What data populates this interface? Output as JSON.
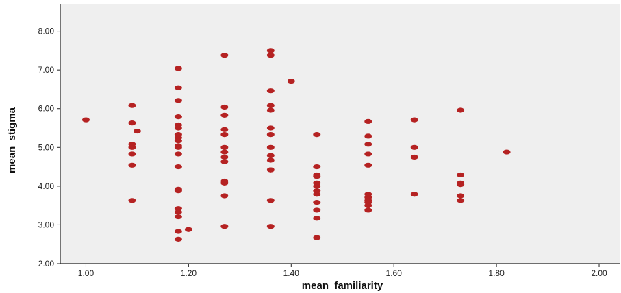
{
  "chart_data": {
    "type": "scatter",
    "title": "",
    "xlabel": "mean_familiarity",
    "ylabel": "mean_stigma",
    "xlim": [
      0.95,
      2.04
    ],
    "ylim": [
      2.0,
      8.7
    ],
    "x_ticks": [
      1.0,
      1.2,
      1.4,
      1.6,
      1.8,
      2.0
    ],
    "x_tick_labels": [
      "1.00",
      "1.20",
      "1.40",
      "1.60",
      "1.80",
      "2.00"
    ],
    "y_ticks": [
      2.0,
      3.0,
      4.0,
      5.0,
      6.0,
      7.0,
      8.0
    ],
    "y_tick_labels": [
      "2.00",
      "3.00",
      "4.00",
      "5.00",
      "6.00",
      "7.00",
      "8.00"
    ],
    "grid": false,
    "point_color": "#b52222",
    "plot_background": "#efefef",
    "points": [
      {
        "x": 1.0,
        "y": 5.71
      },
      {
        "x": 1.09,
        "y": 6.08
      },
      {
        "x": 1.09,
        "y": 5.63
      },
      {
        "x": 1.09,
        "y": 5.08
      },
      {
        "x": 1.09,
        "y": 5.0
      },
      {
        "x": 1.09,
        "y": 4.83
      },
      {
        "x": 1.09,
        "y": 4.54
      },
      {
        "x": 1.09,
        "y": 3.63
      },
      {
        "x": 1.1,
        "y": 5.42
      },
      {
        "x": 1.18,
        "y": 7.04
      },
      {
        "x": 1.18,
        "y": 6.54
      },
      {
        "x": 1.18,
        "y": 6.21
      },
      {
        "x": 1.18,
        "y": 5.79
      },
      {
        "x": 1.18,
        "y": 5.58
      },
      {
        "x": 1.18,
        "y": 5.5
      },
      {
        "x": 1.18,
        "y": 5.33
      },
      {
        "x": 1.18,
        "y": 5.25
      },
      {
        "x": 1.18,
        "y": 5.17
      },
      {
        "x": 1.18,
        "y": 5.04
      },
      {
        "x": 1.18,
        "y": 5.0
      },
      {
        "x": 1.18,
        "y": 4.83
      },
      {
        "x": 1.18,
        "y": 4.5
      },
      {
        "x": 1.18,
        "y": 3.92
      },
      {
        "x": 1.18,
        "y": 3.88
      },
      {
        "x": 1.18,
        "y": 3.42
      },
      {
        "x": 1.18,
        "y": 3.33
      },
      {
        "x": 1.18,
        "y": 3.21
      },
      {
        "x": 1.18,
        "y": 2.83
      },
      {
        "x": 1.18,
        "y": 2.63
      },
      {
        "x": 1.2,
        "y": 2.88
      },
      {
        "x": 1.27,
        "y": 7.38
      },
      {
        "x": 1.27,
        "y": 6.04
      },
      {
        "x": 1.27,
        "y": 5.83
      },
      {
        "x": 1.27,
        "y": 5.46
      },
      {
        "x": 1.27,
        "y": 5.33
      },
      {
        "x": 1.27,
        "y": 5.0
      },
      {
        "x": 1.27,
        "y": 4.88
      },
      {
        "x": 1.27,
        "y": 4.75
      },
      {
        "x": 1.27,
        "y": 4.63
      },
      {
        "x": 1.27,
        "y": 4.13
      },
      {
        "x": 1.27,
        "y": 4.08
      },
      {
        "x": 1.27,
        "y": 3.75
      },
      {
        "x": 1.27,
        "y": 2.96
      },
      {
        "x": 1.36,
        "y": 7.5
      },
      {
        "x": 1.36,
        "y": 7.38
      },
      {
        "x": 1.36,
        "y": 6.46
      },
      {
        "x": 1.36,
        "y": 6.08
      },
      {
        "x": 1.36,
        "y": 5.96
      },
      {
        "x": 1.36,
        "y": 5.5
      },
      {
        "x": 1.36,
        "y": 5.33
      },
      {
        "x": 1.36,
        "y": 5.0
      },
      {
        "x": 1.36,
        "y": 4.79
      },
      {
        "x": 1.36,
        "y": 4.67
      },
      {
        "x": 1.36,
        "y": 4.42
      },
      {
        "x": 1.36,
        "y": 4.42
      },
      {
        "x": 1.36,
        "y": 3.63
      },
      {
        "x": 1.36,
        "y": 2.96
      },
      {
        "x": 1.4,
        "y": 6.71
      },
      {
        "x": 1.45,
        "y": 5.33
      },
      {
        "x": 1.45,
        "y": 4.5
      },
      {
        "x": 1.45,
        "y": 4.29
      },
      {
        "x": 1.45,
        "y": 4.25
      },
      {
        "x": 1.45,
        "y": 4.08
      },
      {
        "x": 1.45,
        "y": 4.0
      },
      {
        "x": 1.45,
        "y": 3.88
      },
      {
        "x": 1.45,
        "y": 3.79
      },
      {
        "x": 1.45,
        "y": 3.58
      },
      {
        "x": 1.45,
        "y": 3.38
      },
      {
        "x": 1.45,
        "y": 3.17
      },
      {
        "x": 1.45,
        "y": 2.67
      },
      {
        "x": 1.55,
        "y": 5.67
      },
      {
        "x": 1.55,
        "y": 5.29
      },
      {
        "x": 1.55,
        "y": 5.08
      },
      {
        "x": 1.55,
        "y": 4.83
      },
      {
        "x": 1.55,
        "y": 4.54
      },
      {
        "x": 1.55,
        "y": 3.79
      },
      {
        "x": 1.55,
        "y": 3.71
      },
      {
        "x": 1.55,
        "y": 3.63
      },
      {
        "x": 1.55,
        "y": 3.58
      },
      {
        "x": 1.55,
        "y": 3.5
      },
      {
        "x": 1.55,
        "y": 3.38
      },
      {
        "x": 1.64,
        "y": 5.71
      },
      {
        "x": 1.64,
        "y": 5.0
      },
      {
        "x": 1.64,
        "y": 4.75
      },
      {
        "x": 1.64,
        "y": 3.79
      },
      {
        "x": 1.73,
        "y": 5.96
      },
      {
        "x": 1.73,
        "y": 4.29
      },
      {
        "x": 1.73,
        "y": 4.08
      },
      {
        "x": 1.73,
        "y": 4.04
      },
      {
        "x": 1.73,
        "y": 3.75
      },
      {
        "x": 1.73,
        "y": 3.63
      },
      {
        "x": 1.82,
        "y": 4.88
      }
    ]
  }
}
